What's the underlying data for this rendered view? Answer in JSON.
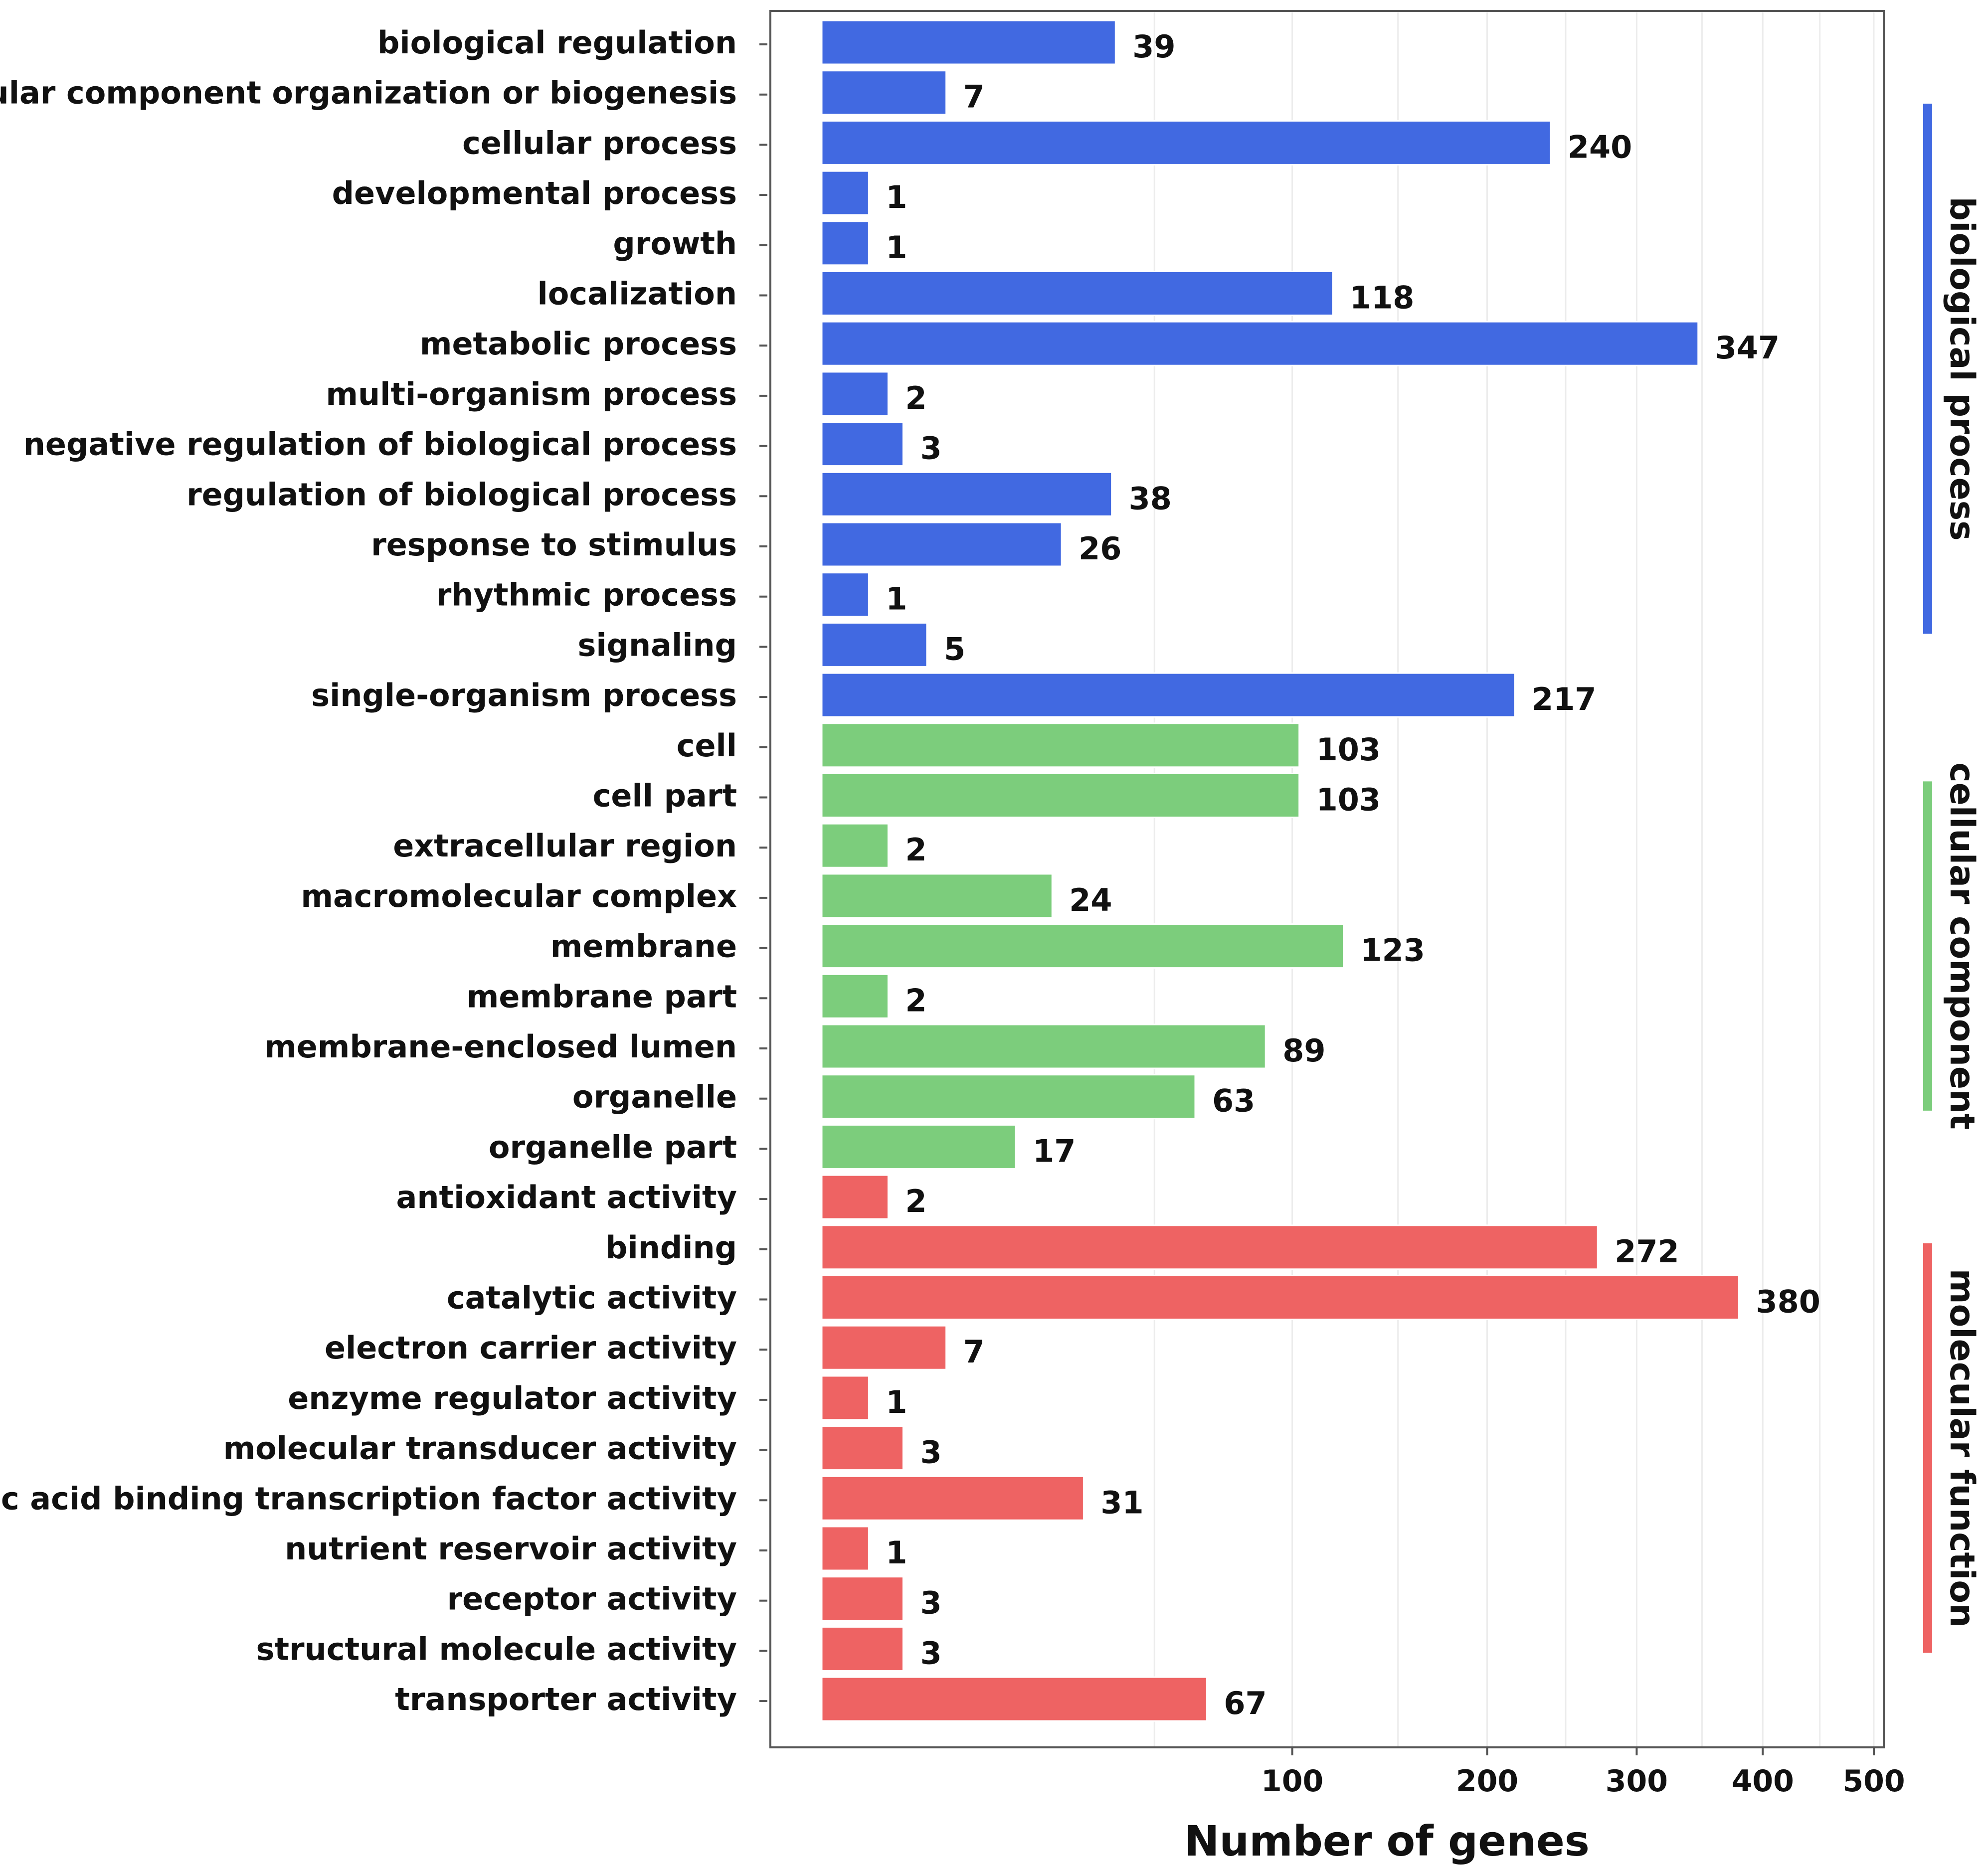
{
  "chart_data": {
    "type": "bar",
    "orientation": "horizontal",
    "xlabel": "Number of genes",
    "x_scale": "sqrt",
    "xlim": [
      0,
      500
    ],
    "xticks": [
      100,
      200,
      300,
      400,
      500
    ],
    "grid": true,
    "groups": [
      {
        "name": "biological process",
        "color": "#4169E1",
        "categories": [
          "biological regulation",
          "cellular component organization or biogenesis",
          "cellular process",
          "developmental process",
          "growth",
          "localization",
          "metabolic process",
          "multi-organism process",
          "negative regulation of biological process",
          "regulation of biological process",
          "response to stimulus",
          "rhythmic process",
          "signaling",
          "single-organism process"
        ],
        "values": [
          39,
          7,
          240,
          1,
          1,
          118,
          347,
          2,
          3,
          38,
          26,
          1,
          5,
          217
        ]
      },
      {
        "name": "cellular component",
        "color": "#7CCD7C",
        "categories": [
          "cell",
          "cell part",
          "extracellular region",
          "macromolecular complex",
          "membrane",
          "membrane part",
          "membrane-enclosed lumen",
          "organelle",
          "organelle part"
        ],
        "values": [
          103,
          103,
          2,
          24,
          123,
          2,
          89,
          63,
          17
        ]
      },
      {
        "name": "molecular function",
        "color": "#EE6363",
        "categories": [
          "antioxidant activity",
          "binding",
          "catalytic activity",
          "electron carrier activity",
          "enzyme regulator activity",
          "molecular transducer activity",
          "nucleic acid binding transcription factor activity",
          "nutrient reservoir activity",
          "receptor activity",
          "structural molecule activity",
          "transporter activity"
        ],
        "values": [
          2,
          272,
          380,
          7,
          1,
          3,
          31,
          1,
          3,
          3,
          67
        ]
      }
    ]
  }
}
